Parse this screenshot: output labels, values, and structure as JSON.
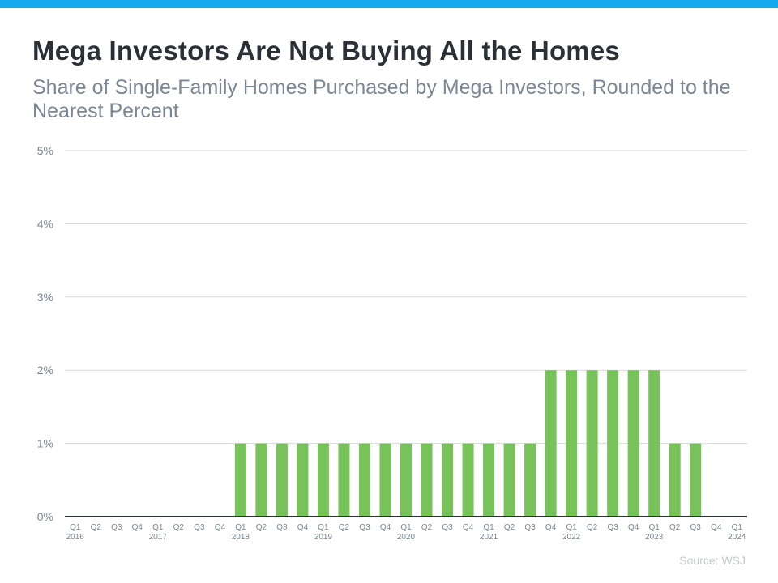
{
  "colors": {
    "accent_bar": "#14aaed",
    "bar": "#77c35a",
    "grid": "#d9d9d9",
    "axis": "#2b3036",
    "tick_text": "#7b8794"
  },
  "header": {
    "title": "Mega Investors Are Not Buying All the Homes",
    "subtitle": "Share of Single-Family Homes Purchased by Mega Investors, Rounded to the Nearest Percent"
  },
  "footer": {
    "source": "Source: WSJ"
  },
  "chart_data": {
    "type": "bar",
    "title": "Mega Investors Are Not Buying All the Homes",
    "subtitle": "Share of Single-Family Homes Purchased by Mega Investors, Rounded to the Nearest Percent",
    "xlabel": "",
    "ylabel": "",
    "ylim": [
      0,
      5
    ],
    "yticks": [
      "0%",
      "1%",
      "2%",
      "3%",
      "4%",
      "5%"
    ],
    "grid": true,
    "categories": [
      {
        "q": "Q1",
        "year": "2016"
      },
      {
        "q": "Q2",
        "year": ""
      },
      {
        "q": "Q3",
        "year": ""
      },
      {
        "q": "Q4",
        "year": ""
      },
      {
        "q": "Q1",
        "year": "2017"
      },
      {
        "q": "Q2",
        "year": ""
      },
      {
        "q": "Q3",
        "year": ""
      },
      {
        "q": "Q4",
        "year": ""
      },
      {
        "q": "Q1",
        "year": "2018"
      },
      {
        "q": "Q2",
        "year": ""
      },
      {
        "q": "Q3",
        "year": ""
      },
      {
        "q": "Q4",
        "year": ""
      },
      {
        "q": "Q1",
        "year": "2019"
      },
      {
        "q": "Q2",
        "year": ""
      },
      {
        "q": "Q3",
        "year": ""
      },
      {
        "q": "Q4",
        "year": ""
      },
      {
        "q": "Q1",
        "year": "2020"
      },
      {
        "q": "Q2",
        "year": ""
      },
      {
        "q": "Q3",
        "year": ""
      },
      {
        "q": "Q4",
        "year": ""
      },
      {
        "q": "Q1",
        "year": "2021"
      },
      {
        "q": "Q2",
        "year": ""
      },
      {
        "q": "Q3",
        "year": ""
      },
      {
        "q": "Q4",
        "year": ""
      },
      {
        "q": "Q1",
        "year": "2022"
      },
      {
        "q": "Q2",
        "year": ""
      },
      {
        "q": "Q3",
        "year": ""
      },
      {
        "q": "Q4",
        "year": ""
      },
      {
        "q": "Q1",
        "year": "2023"
      },
      {
        "q": "Q2",
        "year": ""
      },
      {
        "q": "Q3",
        "year": ""
      },
      {
        "q": "Q4",
        "year": ""
      },
      {
        "q": "Q1",
        "year": "2024"
      }
    ],
    "values": [
      0,
      0,
      0,
      0,
      0,
      0,
      0,
      0,
      1,
      1,
      1,
      1,
      1,
      1,
      1,
      1,
      1,
      1,
      1,
      1,
      1,
      1,
      1,
      2,
      2,
      2,
      2,
      2,
      2,
      1,
      1,
      0,
      0
    ],
    "unit": "%"
  }
}
